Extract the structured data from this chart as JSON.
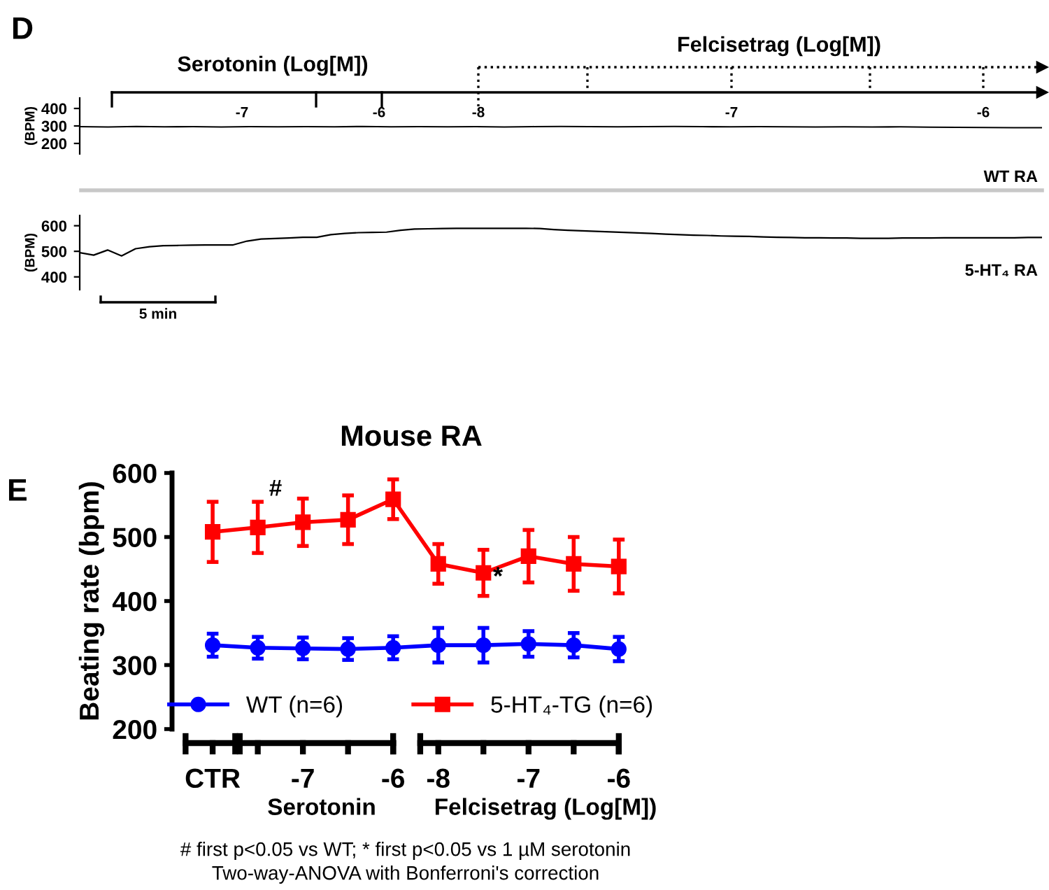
{
  "chart_data": [
    {
      "type": "line",
      "ylabel": "(BPM)",
      "ylim": [
        140,
        460
      ],
      "yticks": [
        200,
        300,
        400
      ],
      "tick_labels": "y",
      "categories": [
        null,
        null,
        null,
        null,
        null,
        null,
        null,
        null,
        null,
        null,
        null,
        null,
        null,
        null,
        null,
        null,
        null,
        null,
        null,
        null,
        null,
        null,
        null,
        null,
        null,
        null,
        null,
        null,
        null,
        null,
        null,
        null,
        null,
        null,
        null
      ],
      "series": [
        {
          "color": "#000000",
          "values": [
            296,
            294,
            297,
            295,
            296,
            294,
            296,
            295,
            296,
            295,
            297,
            295,
            296,
            295,
            296,
            294,
            296,
            297,
            296,
            295,
            296,
            297,
            296,
            295,
            296,
            295,
            294,
            295,
            294,
            295,
            293,
            292,
            291,
            290,
            290
          ]
        }
      ],
      "annotations": [
        "D",
        "Serotonin (Log[M])",
        "Felcisetrag (Log[M])",
        "-7",
        "-6",
        "-8",
        "-7",
        "-6",
        "WT RA"
      ]
    },
    {
      "type": "line",
      "ylabel": "(BPM)",
      "ylim": [
        350,
        640
      ],
      "yticks": [
        400,
        500,
        600
      ],
      "tick_labels": "y",
      "categories": [
        null,
        null,
        null,
        null,
        null,
        null,
        null,
        null,
        null,
        null,
        null,
        null,
        null,
        null,
        null,
        null,
        null,
        null,
        null,
        null,
        null,
        null,
        null,
        null,
        null,
        null,
        null,
        null,
        null,
        null,
        null,
        null,
        null,
        null,
        null,
        null,
        null,
        null,
        null,
        null,
        null,
        null,
        null,
        null,
        null,
        null,
        null,
        null,
        null,
        null,
        null,
        null,
        null,
        null,
        null,
        null,
        null,
        null,
        null,
        null,
        null,
        null,
        null,
        null,
        null,
        null,
        null,
        null,
        null,
        null
      ],
      "series": [
        {
          "color": "#000000",
          "values": [
            495,
            485,
            505,
            482,
            510,
            518,
            522,
            523,
            524,
            525,
            525,
            525,
            540,
            548,
            550,
            552,
            555,
            555,
            565,
            570,
            573,
            574,
            575,
            582,
            587,
            588,
            589,
            590,
            590,
            590,
            590,
            590,
            590,
            589,
            585,
            582,
            580,
            578,
            576,
            574,
            572,
            570,
            567,
            565,
            563,
            562,
            560,
            559,
            558,
            556,
            555,
            554,
            553,
            553,
            552,
            552,
            551,
            551,
            551,
            552,
            552,
            552,
            553,
            553,
            553,
            553,
            553,
            553,
            554,
            554
          ]
        }
      ],
      "annotations": [
        "5-HT₄ RA",
        "5 min"
      ]
    },
    {
      "type": "line",
      "title": "Mouse RA",
      "ylabel": "Beating rate (bpm)",
      "ylim": [
        200,
        600
      ],
      "yticks": [
        200,
        300,
        400,
        500,
        600
      ],
      "legend": "bottom",
      "categories": [
        "CTR",
        null,
        "-7",
        null,
        "-6",
        "-8",
        null,
        "-7",
        null,
        "-6"
      ],
      "series": [
        {
          "name": "WT (n=6)",
          "color": "#0000ff",
          "marker": "circle",
          "values": [
            331,
            327,
            326,
            325,
            327,
            331,
            331,
            333,
            331,
            325
          ],
          "errors": [
            18,
            17,
            17,
            17,
            18,
            27,
            27,
            20,
            19,
            19
          ]
        },
        {
          "name": "5-HT₄-TG (n=6)",
          "color": "#ff0000",
          "marker": "square",
          "values": [
            508,
            515,
            523,
            527,
            559,
            458,
            444,
            470,
            458,
            454
          ],
          "errors": [
            47,
            40,
            37,
            38,
            31,
            31,
            36,
            41,
            42,
            42
          ]
        }
      ],
      "annotations": [
        "E",
        "#",
        "*",
        "Serotonin",
        "Felcisetrag (Log[M])",
        "# first p<0.05 vs WT; * first p<0.05 vs 1 µM serotonin",
        "Two-way-ANOVA with Bonferroni's correction"
      ]
    }
  ]
}
